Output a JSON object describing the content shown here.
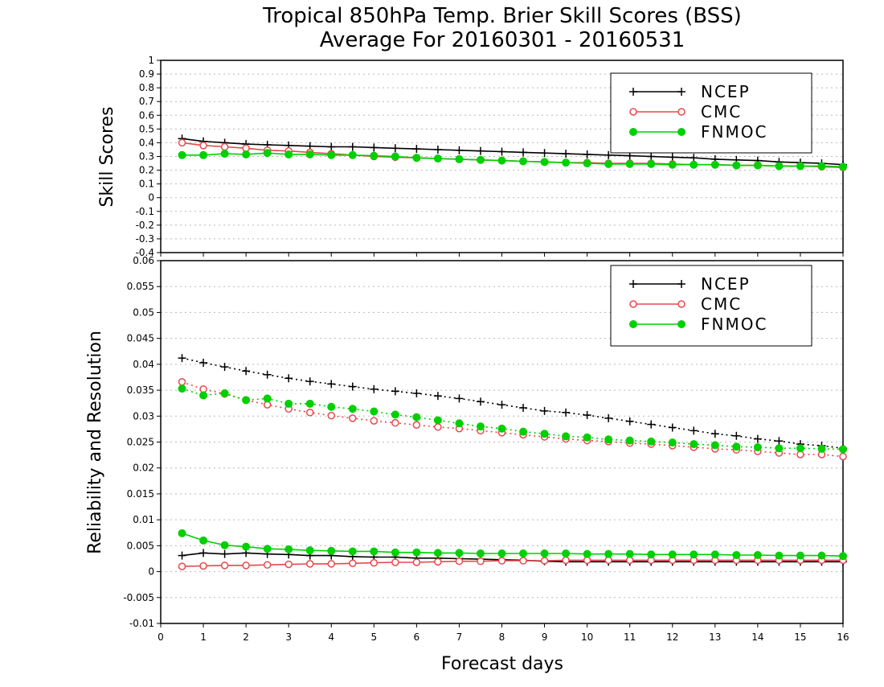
{
  "title_line1": "Tropical 850hPa Temp. Brier Skill Scores (BSS)",
  "title_line2": "Average For 20160301 - 20160531",
  "xlabel": "Forecast days",
  "colors": {
    "NCEP": "#000000",
    "CMC": "#e8484d",
    "FNMOC": "#00d000"
  },
  "chart_data": [
    {
      "type": "line",
      "ylabel": "Skill Scores",
      "ylim": [
        -0.4,
        1.0
      ],
      "yticks": [
        "1",
        "0.9",
        "0.8",
        "0.7",
        "0.6",
        "0.5",
        "0.4",
        "0.3",
        "0.2",
        "0.1",
        "0",
        "-0.1",
        "-0.2",
        "-0.3",
        "-0.4"
      ],
      "xlim": [
        0,
        16
      ],
      "xticks": [
        "0",
        "1",
        "2",
        "3",
        "4",
        "5",
        "6",
        "7",
        "8",
        "9",
        "10",
        "11",
        "12",
        "13",
        "14",
        "15",
        "16"
      ],
      "grid": true,
      "legend": "top-right",
      "x": [
        0.5,
        1,
        1.5,
        2,
        2.5,
        3,
        3.5,
        4,
        4.5,
        5,
        5.5,
        6,
        6.5,
        7,
        7.5,
        8,
        8.5,
        9,
        9.5,
        10,
        10.5,
        11,
        11.5,
        12,
        12.5,
        13,
        13.5,
        14,
        14.5,
        15,
        15.5,
        16
      ],
      "series": [
        {
          "name": "NCEP",
          "marker": "plus",
          "style": "solid",
          "values": [
            0.43,
            0.41,
            0.4,
            0.39,
            0.385,
            0.38,
            0.375,
            0.37,
            0.37,
            0.365,
            0.36,
            0.355,
            0.35,
            0.345,
            0.34,
            0.335,
            0.33,
            0.325,
            0.32,
            0.315,
            0.31,
            0.305,
            0.3,
            0.295,
            0.29,
            0.28,
            0.275,
            0.27,
            0.26,
            0.255,
            0.25,
            0.24
          ]
        },
        {
          "name": "CMC",
          "marker": "open-circle",
          "style": "solid",
          "values": [
            0.4,
            0.38,
            0.37,
            0.36,
            0.345,
            0.34,
            0.33,
            0.32,
            0.31,
            0.3,
            0.295,
            0.29,
            0.285,
            0.28,
            0.275,
            0.27,
            0.265,
            0.26,
            0.255,
            0.255,
            0.25,
            0.25,
            0.25,
            0.245,
            0.24,
            0.24,
            0.235,
            0.235,
            0.23,
            0.23,
            0.225,
            0.22
          ]
        },
        {
          "name": "FNMOC",
          "marker": "filled-circle",
          "style": "solid",
          "values": [
            0.31,
            0.31,
            0.32,
            0.315,
            0.325,
            0.315,
            0.315,
            0.31,
            0.31,
            0.305,
            0.3,
            0.29,
            0.285,
            0.28,
            0.275,
            0.27,
            0.265,
            0.26,
            0.255,
            0.25,
            0.245,
            0.245,
            0.245,
            0.24,
            0.24,
            0.24,
            0.235,
            0.235,
            0.23,
            0.23,
            0.23,
            0.225
          ]
        }
      ]
    },
    {
      "type": "line",
      "ylabel": "Reliability and Resolution",
      "ylim": [
        -0.01,
        0.06
      ],
      "yticks": [
        "0.06",
        "0.055",
        "0.05",
        "0.045",
        "0.04",
        "0.035",
        "0.03",
        "0.025",
        "0.02",
        "0.015",
        "0.01",
        "0.005",
        "0",
        "-0.005",
        "-0.01"
      ],
      "xlim": [
        0,
        16
      ],
      "xticks": [
        "0",
        "1",
        "2",
        "3",
        "4",
        "5",
        "6",
        "7",
        "8",
        "9",
        "10",
        "11",
        "12",
        "13",
        "14",
        "15",
        "16"
      ],
      "grid": true,
      "legend": "top-right",
      "x": [
        0.5,
        1,
        1.5,
        2,
        2.5,
        3,
        3.5,
        4,
        4.5,
        5,
        5.5,
        6,
        6.5,
        7,
        7.5,
        8,
        8.5,
        9,
        9.5,
        10,
        10.5,
        11,
        11.5,
        12,
        12.5,
        13,
        13.5,
        14,
        14.5,
        15,
        15.5,
        16
      ],
      "series": [
        {
          "name": "NCEP",
          "marker": "plus",
          "style": "dotted",
          "values": [
            0.0412,
            0.0403,
            0.0395,
            0.0387,
            0.038,
            0.0373,
            0.0367,
            0.0362,
            0.0357,
            0.0352,
            0.0348,
            0.0344,
            0.0339,
            0.0334,
            0.0328,
            0.0322,
            0.0316,
            0.031,
            0.0307,
            0.0302,
            0.0296,
            0.029,
            0.0284,
            0.0278,
            0.0272,
            0.0266,
            0.0262,
            0.0256,
            0.0252,
            0.0246,
            0.0243,
            0.0238
          ]
        },
        {
          "name": "CMC",
          "marker": "open-circle",
          "style": "dotted",
          "values": [
            0.0366,
            0.0352,
            0.0343,
            0.0331,
            0.0322,
            0.0314,
            0.0307,
            0.0301,
            0.0296,
            0.0291,
            0.0287,
            0.0283,
            0.0279,
            0.0276,
            0.0272,
            0.0268,
            0.0264,
            0.026,
            0.0256,
            0.0253,
            0.0251,
            0.0248,
            0.0246,
            0.0243,
            0.024,
            0.0237,
            0.0235,
            0.0232,
            0.0229,
            0.0226,
            0.0226,
            0.0222
          ]
        },
        {
          "name": "FNMOC",
          "marker": "filled-circle",
          "style": "dotted",
          "values": [
            0.0353,
            0.034,
            0.0344,
            0.0331,
            0.0334,
            0.0324,
            0.0324,
            0.0318,
            0.0314,
            0.0309,
            0.0303,
            0.0298,
            0.0292,
            0.0286,
            0.028,
            0.0276,
            0.027,
            0.0266,
            0.0261,
            0.0259,
            0.0255,
            0.0253,
            0.0251,
            0.0249,
            0.0246,
            0.0244,
            0.0241,
            0.024,
            0.0238,
            0.0238,
            0.0237,
            0.0236
          ]
        },
        {
          "name": "NCEP",
          "marker": "plus",
          "style": "solid",
          "legend": false,
          "values": [
            0.0031,
            0.0036,
            0.0034,
            0.0036,
            0.0034,
            0.0033,
            0.0031,
            0.0031,
            0.0029,
            0.0028,
            0.0028,
            0.0026,
            0.0026,
            0.0025,
            0.0024,
            0.0023,
            0.0022,
            0.002,
            0.0019,
            0.0019,
            0.0019,
            0.0019,
            0.0019,
            0.0019,
            0.0019,
            0.0019,
            0.0019,
            0.0019,
            0.0019,
            0.0019,
            0.0019,
            0.0019
          ]
        },
        {
          "name": "CMC",
          "marker": "open-circle",
          "style": "solid",
          "legend": false,
          "values": [
            0.001,
            0.0011,
            0.0012,
            0.0012,
            0.0013,
            0.0014,
            0.0015,
            0.0015,
            0.0016,
            0.0017,
            0.0018,
            0.0018,
            0.0019,
            0.002,
            0.002,
            0.0021,
            0.0021,
            0.0021,
            0.0022,
            0.0022,
            0.0022,
            0.0022,
            0.0022,
            0.0022,
            0.0022,
            0.0022,
            0.0022,
            0.0022,
            0.0022,
            0.0022,
            0.0022,
            0.0022
          ]
        },
        {
          "name": "FNMOC",
          "marker": "filled-circle",
          "style": "solid",
          "legend": false,
          "values": [
            0.0074,
            0.006,
            0.0051,
            0.0048,
            0.0044,
            0.0043,
            0.0041,
            0.004,
            0.0039,
            0.0039,
            0.0037,
            0.0037,
            0.0036,
            0.0036,
            0.0035,
            0.0035,
            0.0035,
            0.0035,
            0.0035,
            0.0034,
            0.0034,
            0.0034,
            0.0033,
            0.0033,
            0.0033,
            0.0033,
            0.0032,
            0.0032,
            0.0031,
            0.0031,
            0.0031,
            0.003
          ]
        }
      ]
    }
  ]
}
